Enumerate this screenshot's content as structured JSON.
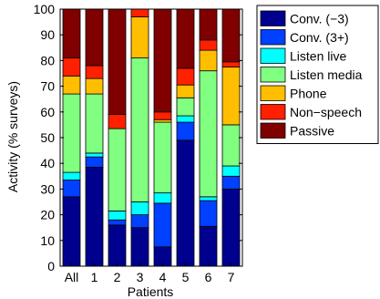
{
  "chart_data": {
    "type": "bar",
    "stacked": true,
    "xlabel": "Patients",
    "ylabel": "Activity (% surveys)",
    "ylim": [
      0,
      100
    ],
    "yticks": [
      0,
      10,
      20,
      30,
      40,
      50,
      60,
      70,
      80,
      90,
      100
    ],
    "grid": false,
    "legend_position": "outside-right",
    "categories": [
      "All",
      "1",
      "2",
      "3",
      "4",
      "5",
      "6",
      "7"
    ],
    "series": [
      {
        "name": "Conv. (−3)",
        "color": "#00008f",
        "values": [
          27,
          38.5,
          16,
          15,
          7.5,
          49,
          15.5,
          30
        ]
      },
      {
        "name": "Conv. (3+)",
        "color": "#0040ff",
        "values": [
          6.5,
          4,
          2,
          5,
          17,
          7,
          10,
          5
        ]
      },
      {
        "name": "Listen live",
        "color": "#00ffff",
        "values": [
          3,
          1.5,
          3.5,
          5,
          4,
          2.5,
          1.5,
          4
        ]
      },
      {
        "name": "Listen media",
        "color": "#80ff80",
        "values": [
          30.5,
          23,
          32,
          56,
          27.5,
          7,
          49,
          16
        ]
      },
      {
        "name": "Phone",
        "color": "#ffbf00",
        "values": [
          7,
          6,
          0,
          16,
          1,
          5,
          8,
          22.5
        ]
      },
      {
        "name": "Non−speech",
        "color": "#ff2000",
        "values": [
          7,
          5,
          5.5,
          3,
          3,
          6.5,
          4,
          2
        ]
      },
      {
        "name": "Passive",
        "color": "#800000",
        "values": [
          19,
          22,
          41,
          0,
          40,
          23,
          12,
          20.5
        ]
      }
    ]
  }
}
